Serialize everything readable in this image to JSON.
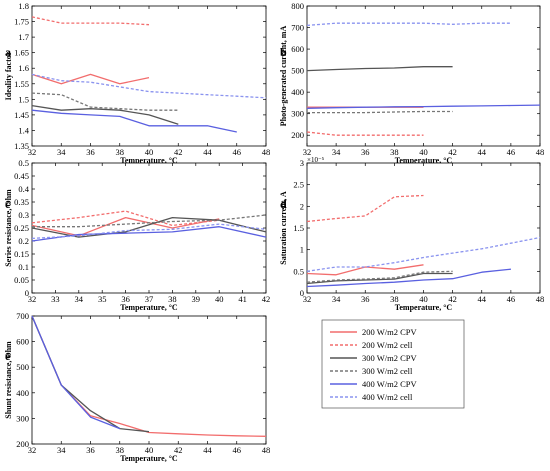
{
  "series_styles": [
    {
      "color": "#f26d6d",
      "dash": ""
    },
    {
      "color": "#f26d6d",
      "dash": "3,2"
    },
    {
      "color": "#555555",
      "dash": ""
    },
    {
      "color": "#777777",
      "dash": "3,2"
    },
    {
      "color": "#5a60e0",
      "dash": ""
    },
    {
      "color": "#8a93ef",
      "dash": "3,2"
    }
  ],
  "legend": {
    "entries": [
      "200 W/m2 CPV",
      "200 W/m2 cell",
      "300 W/m2 CPV",
      "300 W/m2 cell",
      "400 W/m2 CPV",
      "400 W/m2 cell"
    ]
  },
  "chart_data": [
    {
      "type": "line",
      "panel_label": "a",
      "xlabel": "Temperature, °C",
      "ylabel": "Ideality factor",
      "xlim": [
        32,
        48
      ],
      "ylim": [
        1.35,
        1.8
      ],
      "xticks": [
        "32",
        "34",
        "36",
        "38",
        "40",
        "42",
        "44",
        "46",
        "48"
      ],
      "yticks": [
        "1.35",
        "1.4",
        "1.45",
        "1.5",
        "1.55",
        "1.6",
        "1.65",
        "1.7",
        "1.75",
        "1.8"
      ],
      "series": [
        {
          "style": 0,
          "x": [
            32,
            34,
            36,
            38,
            40
          ],
          "y": [
            1.58,
            1.55,
            1.58,
            1.55,
            1.57
          ]
        },
        {
          "style": 1,
          "x": [
            32,
            34,
            36,
            38,
            40
          ],
          "y": [
            1.765,
            1.745,
            1.745,
            1.745,
            1.74
          ]
        },
        {
          "style": 2,
          "x": [
            32,
            34,
            36,
            38,
            40,
            42
          ],
          "y": [
            1.48,
            1.465,
            1.47,
            1.465,
            1.45,
            1.42
          ]
        },
        {
          "style": 3,
          "x": [
            32,
            34,
            36,
            38,
            40,
            42
          ],
          "y": [
            1.52,
            1.515,
            1.475,
            1.47,
            1.465,
            1.465
          ]
        },
        {
          "style": 4,
          "x": [
            32,
            34,
            36,
            38,
            40,
            42,
            44,
            46
          ],
          "y": [
            1.465,
            1.455,
            1.45,
            1.445,
            1.415,
            1.415,
            1.415,
            1.395
          ]
        },
        {
          "style": 5,
          "x": [
            32,
            34,
            36,
            38,
            40,
            42,
            44,
            46,
            48
          ],
          "y": [
            1.58,
            1.56,
            1.555,
            1.54,
            1.525,
            1.52,
            1.515,
            1.51,
            1.505
          ]
        }
      ]
    },
    {
      "type": "line",
      "panel_label": "b",
      "xlabel": "Temperature, °C",
      "ylabel": "Photo-generated current, mA",
      "xlim": [
        32,
        48
      ],
      "ylim": [
        150,
        800
      ],
      "xticks": [
        "32",
        "34",
        "36",
        "38",
        "40",
        "42",
        "44",
        "46",
        "48"
      ],
      "yticks": [
        "200",
        "300",
        "400",
        "500",
        "600",
        "700",
        "800"
      ],
      "series": [
        {
          "style": 0,
          "x": [
            32,
            34,
            36,
            38,
            40
          ],
          "y": [
            330,
            330,
            330,
            330,
            330
          ]
        },
        {
          "style": 1,
          "x": [
            32,
            34,
            36,
            38,
            40
          ],
          "y": [
            215,
            200,
            200,
            200,
            200
          ]
        },
        {
          "style": 2,
          "x": [
            32,
            34,
            36,
            38,
            40,
            42
          ],
          "y": [
            500,
            505,
            510,
            512,
            518,
            518
          ]
        },
        {
          "style": 3,
          "x": [
            32,
            34,
            36,
            38,
            40,
            42
          ],
          "y": [
            305,
            305,
            305,
            308,
            310,
            310
          ]
        },
        {
          "style": 4,
          "x": [
            32,
            34,
            36,
            38,
            40,
            42,
            44,
            46,
            48
          ],
          "y": [
            325,
            328,
            330,
            332,
            333,
            335,
            336,
            338,
            340
          ]
        },
        {
          "style": 5,
          "x": [
            32,
            34,
            36,
            38,
            40,
            42,
            44,
            46
          ],
          "y": [
            710,
            720,
            720,
            720,
            720,
            715,
            720,
            720
          ]
        }
      ]
    },
    {
      "type": "line",
      "panel_label": "c",
      "xlabel": "Temperature, °C",
      "ylabel": "Series resistance, Ohm",
      "xlim": [
        32,
        42
      ],
      "ylim": [
        0,
        0.5
      ],
      "xticks": [
        "32",
        "33",
        "34",
        "35",
        "36",
        "37",
        "38",
        "39",
        "40",
        "41",
        "42"
      ],
      "yticks": [
        "0",
        "0.05",
        "0.1",
        "0.15",
        "0.2",
        "0.25",
        "0.3",
        "0.35",
        "0.4",
        "0.45",
        "0.5"
      ],
      "series": [
        {
          "style": 0,
          "x": [
            32,
            34,
            36,
            38,
            40
          ],
          "y": [
            0.26,
            0.22,
            0.29,
            0.25,
            0.285
          ]
        },
        {
          "style": 1,
          "x": [
            32,
            34,
            36,
            38,
            40
          ],
          "y": [
            0.27,
            0.29,
            0.315,
            0.26,
            0.28
          ]
        },
        {
          "style": 2,
          "x": [
            32,
            34,
            36,
            38,
            40,
            42
          ],
          "y": [
            0.25,
            0.215,
            0.235,
            0.29,
            0.28,
            0.235
          ]
        },
        {
          "style": 3,
          "x": [
            32,
            34,
            36,
            38,
            40,
            42
          ],
          "y": [
            0.255,
            0.255,
            0.265,
            0.275,
            0.28,
            0.3
          ]
        },
        {
          "style": 4,
          "x": [
            32,
            34,
            36,
            38,
            40,
            42
          ],
          "y": [
            0.2,
            0.225,
            0.23,
            0.235,
            0.255,
            0.215
          ]
        },
        {
          "style": 5,
          "x": [
            32,
            34,
            36,
            38,
            40,
            42
          ],
          "y": [
            0.21,
            0.22,
            0.24,
            0.245,
            0.265,
            0.245
          ]
        }
      ]
    },
    {
      "type": "line",
      "panel_label": "d",
      "xlabel": "Temperature, °C",
      "ylabel": "Saturation current, A",
      "axis_exponent": "×10⁻⁵",
      "xlim": [
        32,
        48
      ],
      "ylim": [
        0,
        3
      ],
      "xticks": [
        "32",
        "34",
        "36",
        "38",
        "40",
        "42",
        "44",
        "46",
        "48"
      ],
      "yticks": [
        "0",
        "0.5",
        "1",
        "1.5",
        "2",
        "2.5",
        "3"
      ],
      "series": [
        {
          "style": 0,
          "x": [
            32,
            34,
            36,
            38,
            40
          ],
          "y": [
            0.45,
            0.42,
            0.6,
            0.55,
            0.65
          ]
        },
        {
          "style": 1,
          "x": [
            32,
            34,
            36,
            38,
            40
          ],
          "y": [
            1.65,
            1.72,
            1.78,
            2.22,
            2.25
          ]
        },
        {
          "style": 2,
          "x": [
            32,
            34,
            36,
            38,
            40,
            42
          ],
          "y": [
            0.22,
            0.28,
            0.3,
            0.32,
            0.45,
            0.45
          ]
        },
        {
          "style": 3,
          "x": [
            32,
            34,
            36,
            38,
            40,
            42
          ],
          "y": [
            0.25,
            0.3,
            0.32,
            0.35,
            0.48,
            0.5
          ]
        },
        {
          "style": 4,
          "x": [
            32,
            34,
            36,
            38,
            40,
            42,
            44,
            46
          ],
          "y": [
            0.15,
            0.18,
            0.22,
            0.25,
            0.3,
            0.33,
            0.48,
            0.55
          ]
        },
        {
          "style": 5,
          "x": [
            32,
            34,
            36,
            38,
            40,
            42,
            44,
            46,
            48
          ],
          "y": [
            0.5,
            0.6,
            0.6,
            0.7,
            0.82,
            0.92,
            1.02,
            1.15,
            1.28
          ]
        }
      ]
    },
    {
      "type": "line",
      "panel_label": "e",
      "xlabel": "Temperature, °C",
      "ylabel": "Shunt resistance, Ohm",
      "xlim": [
        32,
        48
      ],
      "ylim": [
        200,
        700
      ],
      "xticks": [
        "32",
        "34",
        "36",
        "38",
        "40",
        "42",
        "44",
        "46",
        "48"
      ],
      "yticks": [
        "200",
        "300",
        "400",
        "500",
        "600",
        "700"
      ],
      "series": [
        {
          "style": 0,
          "x": [
            32,
            34,
            36,
            38,
            40,
            42,
            44,
            46,
            48
          ],
          "y": [
            700,
            430,
            310,
            280,
            245,
            240,
            235,
            232,
            230
          ]
        },
        {
          "style": 2,
          "x": [
            32,
            34,
            36,
            38,
            40
          ],
          "y": [
            700,
            430,
            330,
            260,
            248
          ]
        },
        {
          "style": 4,
          "x": [
            32,
            34,
            36,
            38
          ],
          "y": [
            700,
            430,
            305,
            260
          ]
        }
      ]
    }
  ]
}
